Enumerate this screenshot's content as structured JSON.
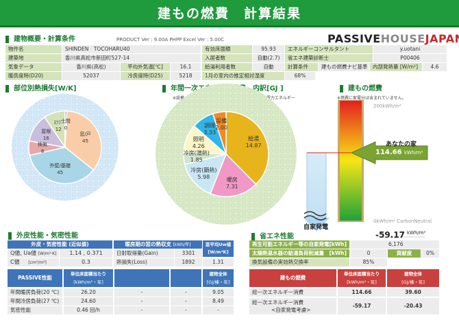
{
  "title": "建もの燃費　計算結果",
  "overview": {
    "heading": "建物概要・計算条件",
    "version": "PRODUCT Ver : 9.00A  PHPP Excel Ver : 5.00C",
    "logo": {
      "a": "PASSIVE",
      "b": "HOUSE",
      "c": "JAPAN"
    },
    "property_label": "物件名",
    "property": "SHINDEN　TOCOHARU40",
    "site_label": "建築地",
    "site": "香川県高松市新田町527-14",
    "weather_label": "気象データ",
    "weather": "香川県(高松)",
    "avg_temp_label": "平均外気温[℃]",
    "avg_temp": "16.1",
    "hdd_label": "暖房度時(D20)",
    "hdd": "52037",
    "cdd_label": "冷房度時(D25)",
    "cdd": "5218",
    "floor_label": "有効床面積",
    "floor": "95.93",
    "occ_label": "入居者数",
    "occ": "自動(2.7)",
    "hw_label": "給湯利用者数",
    "hw": "自動",
    "rh_label": "1月の室内の推定相対湿度",
    "rh": "68%",
    "consultant_label": "エネルギーコンサルタント",
    "consultant": "y.uotani",
    "diag_label": "省エネ建築診断士",
    "diag": "P00406",
    "calc_label": "計算条件",
    "calc": "建もの燃費ナビ基準",
    "internal_label": "内部発熱量 [W/m²]",
    "internal": "4.6"
  },
  "heatloss": {
    "heading": "部位別熱損失[W/K]"
  },
  "energy": {
    "heading": "年間一次エネルギー消費　内訳[GJ ]",
    "note": "※設備：換気システム、太陽熱温水設備等に必要な電力エネルギー"
  },
  "fuel": {
    "heading": "建もの燃費",
    "note": "※燃費に家電分は含まれていません。",
    "top": "200kWh/m²",
    "bottom": "0kWh/m² CarbonNeutral",
    "yours": "あなたの家",
    "value": "114.66",
    "unit": "kWh/m²",
    "self_gen": "自家発電",
    "net": "-59.17",
    "net_unit": "kWh/m²"
  },
  "chart_data": [
    {
      "type": "pie",
      "title": "部位別熱損失[W/K]",
      "categories": [
        "窓/戸",
        "外壁/基礎",
        "換気",
        "屋根",
        "ｽﾗﾌﾞ",
        "土間"
      ],
      "values": [
        45,
        45,
        8,
        16,
        12,
        0
      ],
      "colors": [
        "#f9cda8",
        "#a9d6e6",
        "#e5a9a9",
        "#c9bedd",
        "#d5e2b8",
        "#9a8fb8"
      ]
    },
    {
      "type": "pie",
      "title": "年間一次エネルギー消費 内訳[GJ]",
      "categories": [
        "給湯",
        "暖房",
        "冷房(顕熱)",
        "冷房(潜熱)",
        "照明",
        "調理",
        "設備"
      ],
      "values": [
        14.87,
        7.31,
        5.98,
        1.85,
        4.26,
        3.33,
        2.0
      ],
      "labels": [
        "14.87",
        "7.31",
        "5.98",
        "1.85",
        "4.26",
        "3.33",
        "2.00"
      ],
      "colors": [
        "#e8b41c",
        "#f198c6",
        "#c9e6f4",
        "#cfe5cc",
        "#fbf5c9",
        "#2fb5e8",
        "#f08b24"
      ]
    }
  ],
  "envelope": {
    "heading": "外皮性能・気密性能",
    "h1": "外皮・気密性能 (近似値)",
    "h2": "暖房期の窓の熱収支",
    "h2u": "[kWh/年]",
    "h3": "窓平均Uw値",
    "h3u": "[W/m²K]",
    "q_label": "Q値, Ua値",
    "q_unit": "[W/m²·K]",
    "q": "1.14 , 0.371",
    "c_label": "C値",
    "c_unit": "[cm²/m²]",
    "c": "0.3",
    "gain_label": "日射取得量(Gain)",
    "gain": "3301",
    "loss_label": "熱損失(Loss)",
    "loss": "1892",
    "uw": "1.31"
  },
  "passive": {
    "h1": "PASSIVE性能",
    "h2": "単位床面積当たり",
    "h2u": "[kWh/m²・年]",
    "h5": "建物全体",
    "h5u": "[GJ/棟・年]",
    "rows": [
      {
        "label": "年間暖房負荷(20 ℃)",
        "unit": "26.20",
        "c3": "-",
        "c4": "-",
        "total": "9.05"
      },
      {
        "label": "年間冷房負荷(27 ℃)",
        "unit": "24.60",
        "c3": "-",
        "c4": "-",
        "total": "8.49"
      },
      {
        "label": "気密性能",
        "unit": "0.46 回/h",
        "c3": "-",
        "c4": "-",
        "total": "-"
      }
    ]
  },
  "saving": {
    "heading": "省エネ性能",
    "r1_label": "再生可能エネルギー等の自家発電[kWh]",
    "r1": "6,176",
    "r2_label": "太陽熱温水器の給湯負荷削減量　[kWh]",
    "r2": "0",
    "contrib_label": "貢献度",
    "contrib": "0%",
    "r3_label": "換気設備の実効熱交換率",
    "r3": "85%"
  },
  "fuel_table": {
    "h1": "建もの燃費",
    "h2": "単位床面積当たり",
    "h2u": "[kWh/m²・年]",
    "h3": "建物全体",
    "h3u": "[GJ/棟・年]",
    "r1_label": "総一次エネルギー消費",
    "r1_unit": "114.66",
    "r1_total": "39.60",
    "r2_label": "総一次エネルギー消費",
    "r2_sub": "<自家発電考慮>",
    "r2_unit": "-59.17",
    "r2_total": "-20.43"
  }
}
